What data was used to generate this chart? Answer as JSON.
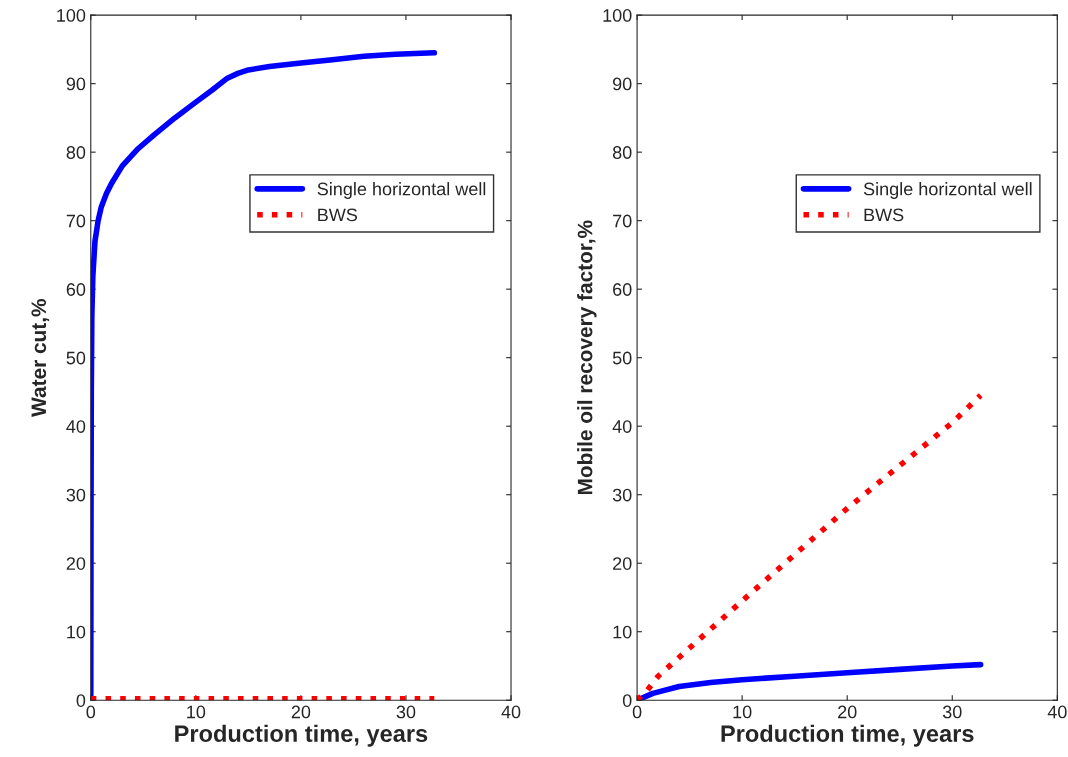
{
  "chart_data": [
    {
      "type": "line",
      "xlabel": "Production time, years",
      "ylabel": "Water cut,%",
      "xlim": [
        0,
        40
      ],
      "ylim": [
        0,
        100
      ],
      "xticks": [
        0,
        10,
        20,
        30,
        40
      ],
      "yticks": [
        0,
        10,
        20,
        30,
        40,
        50,
        60,
        70,
        80,
        90,
        100
      ],
      "legend": "top right",
      "grid": false,
      "series": [
        {
          "name": "Single horizontal well",
          "color": "#0000ff",
          "line_style": "solid",
          "x": [
            0,
            0.02,
            0.05,
            0.1,
            0.2,
            0.4,
            0.7,
            1,
            1.5,
            2,
            3,
            4.5,
            6,
            8,
            10,
            11.5,
            13,
            14,
            15,
            17,
            20,
            23,
            26,
            29,
            32.7
          ],
          "values": [
            0,
            25,
            45,
            56,
            62,
            67,
            70,
            72,
            74,
            75.5,
            78,
            80.5,
            82.5,
            85,
            87.3,
            89,
            90.8,
            91.5,
            92,
            92.5,
            93,
            93.5,
            94,
            94.3,
            94.5
          ]
        },
        {
          "name": "BWS",
          "color": "#ff0000",
          "line_style": "dotted",
          "x": [
            0,
            32.7
          ],
          "values": [
            0.2,
            0.2
          ]
        }
      ]
    },
    {
      "type": "line",
      "xlabel": "Production time, years",
      "ylabel": "Mobile oil recovery factor,%",
      "xlim": [
        0,
        40
      ],
      "ylim": [
        0,
        100
      ],
      "xticks": [
        0,
        10,
        20,
        30,
        40
      ],
      "yticks": [
        0,
        10,
        20,
        30,
        40,
        50,
        60,
        70,
        80,
        90,
        100
      ],
      "legend": "top right",
      "grid": false,
      "series": [
        {
          "name": "Single horizontal well",
          "color": "#0000ff",
          "line_style": "solid",
          "x": [
            0,
            1.5,
            4,
            7,
            10,
            15,
            20,
            25,
            30,
            32.7
          ],
          "values": [
            0,
            1,
            2,
            2.6,
            3,
            3.5,
            4,
            4.5,
            5,
            5.2
          ]
        },
        {
          "name": "BWS",
          "color": "#ff0000",
          "line_style": "dotted",
          "x": [
            0,
            1,
            2,
            10,
            20,
            30,
            32.7
          ],
          "values": [
            0,
            1.5,
            3.5,
            14.5,
            28,
            40.5,
            44.5
          ]
        }
      ]
    }
  ]
}
